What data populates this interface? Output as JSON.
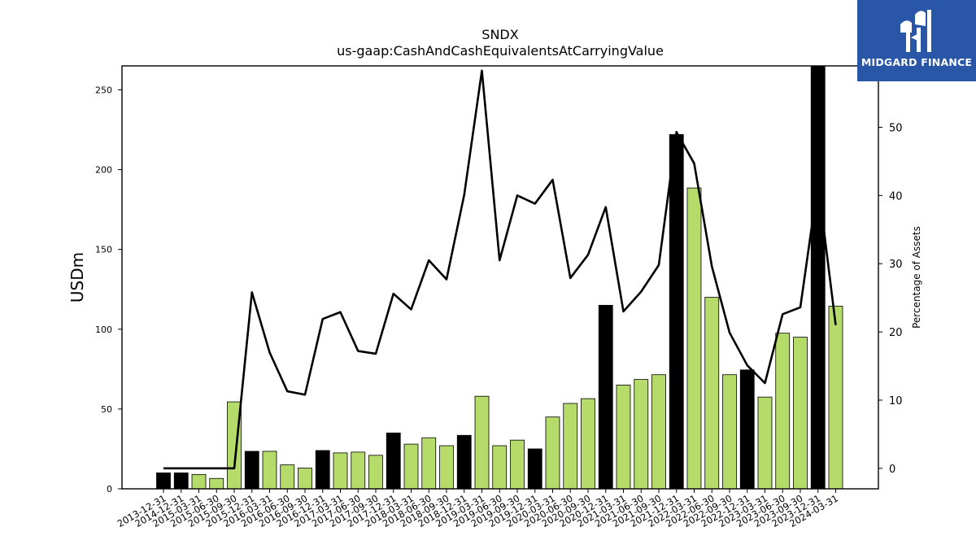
{
  "header": {
    "title": "SNDX",
    "subtitle": "us-gaap:CashAndCashEquivalentsAtCarryingValue"
  },
  "logo": {
    "text": "MIDGARD FINANCE",
    "bg_color": "#2a56a8"
  },
  "chart_data": {
    "type": "bar",
    "title": "SNDX",
    "subtitle": "us-gaap:CashAndCashEquivalentsAtCarryingValue",
    "ylabel": "USDm",
    "y2label": "Percentage of Assets",
    "ylim": [
      0,
      265
    ],
    "y2lim": [
      -3,
      59
    ],
    "yticks": [
      0,
      50,
      100,
      150,
      200,
      250
    ],
    "y2ticks": [
      0,
      10,
      20,
      30,
      40,
      50
    ],
    "categories": [
      "2013-12-31",
      "2014-12-31",
      "2015-03-31",
      "2015-06-30",
      "2015-09-30",
      "2015-12-31",
      "2016-03-31",
      "2016-06-30",
      "2016-09-30",
      "2016-12-31",
      "2017-03-31",
      "2017-06-30",
      "2017-09-30",
      "2017-12-31",
      "2018-03-31",
      "2018-06-30",
      "2018-09-30",
      "2018-12-31",
      "2019-03-31",
      "2019-06-30",
      "2019-09-30",
      "2019-12-31",
      "2020-03-31",
      "2020-06-30",
      "2020-09-30",
      "2020-12-31",
      "2021-03-31",
      "2021-06-30",
      "2021-09-30",
      "2021-12-31",
      "2022-03-31",
      "2022-06-30",
      "2022-09-30",
      "2022-12-31",
      "2023-03-31",
      "2023-06-30",
      "2023-09-30",
      "2023-12-31",
      "2024-03-31"
    ],
    "series": [
      {
        "kind": "bar",
        "values": [
          10,
          10,
          9,
          6.5,
          54.5,
          23.5,
          23.5,
          15,
          13,
          24,
          22.5,
          23,
          21,
          35,
          28,
          32,
          27,
          33.5,
          58,
          27,
          30.5,
          25,
          45,
          53.5,
          56.5,
          115,
          65,
          68.5,
          71.5,
          222,
          188.5,
          120,
          71.5,
          74.5,
          57.5,
          97.5,
          95,
          265,
          114.5
        ],
        "is_year_end": [
          true,
          true,
          false,
          false,
          false,
          true,
          false,
          false,
          false,
          true,
          false,
          false,
          false,
          true,
          false,
          false,
          false,
          true,
          false,
          false,
          false,
          true,
          false,
          false,
          false,
          true,
          false,
          false,
          false,
          true,
          false,
          false,
          false,
          true,
          false,
          false,
          false,
          true,
          false
        ]
      },
      {
        "kind": "line",
        "axis": "right",
        "values": [
          0,
          0,
          0,
          0,
          0,
          25.8,
          17,
          11.3,
          10.8,
          21.9,
          22.9,
          17.2,
          16.8,
          25.6,
          23.3,
          30.5,
          27.7,
          40.1,
          58.3,
          30.5,
          40,
          38.8,
          42.3,
          27.9,
          31.3,
          38.3,
          23,
          25.9,
          29.8,
          49.3,
          44.7,
          29.6,
          19.9,
          15.1,
          12.5,
          22.6,
          23.6,
          41.9,
          21
        ]
      }
    ],
    "colors": {
      "year_end_bar": "#000000",
      "quarter_bar": "#b5dc6a",
      "line": "#000000"
    },
    "grid": false,
    "legend": "none"
  }
}
